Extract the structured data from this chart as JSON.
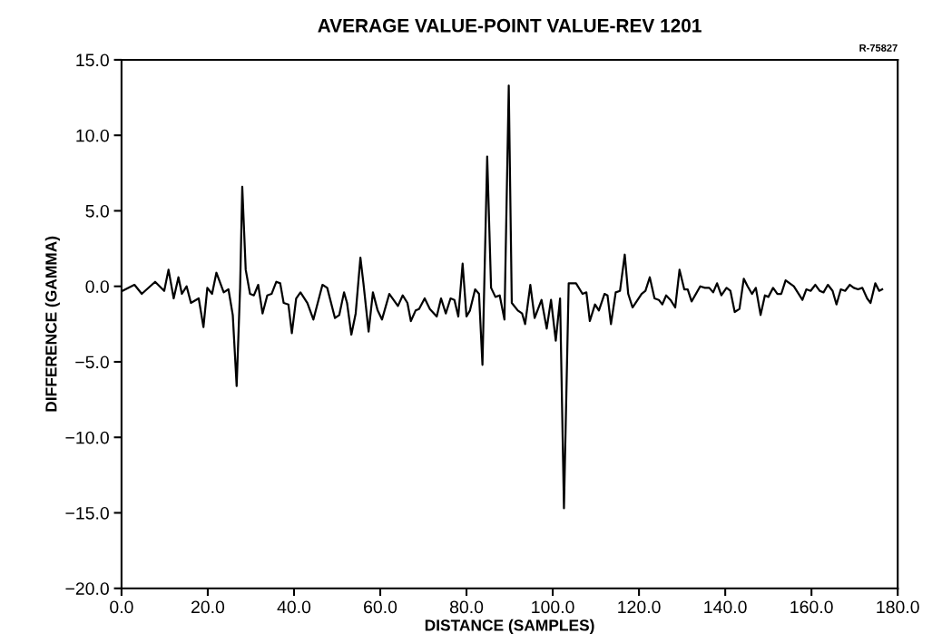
{
  "chart_data": {
    "type": "line",
    "title": "AVERAGE VALUE-POINT VALUE-REV 1201",
    "xlabel": "DISTANCE (SAMPLES)",
    "ylabel": "DIFFERENCE (GAMMA)",
    "annotations": [
      "R-75827"
    ],
    "x": [
      0.2,
      3.0,
      4.7,
      7.8,
      9.9,
      10.9,
      12.1,
      13.2,
      14.0,
      15.1,
      16.1,
      17.9,
      19.0,
      19.9,
      21.0,
      22.0,
      23.7,
      24.8,
      25.8,
      26.7,
      27.5,
      28.0,
      28.8,
      29.8,
      30.7,
      31.7,
      32.7,
      33.8,
      34.8,
      35.9,
      36.8,
      37.6,
      38.7,
      39.5,
      40.5,
      41.5,
      43.1,
      44.5,
      46.6,
      47.7,
      49.5,
      50.5,
      51.6,
      52.3,
      53.3,
      54.3,
      55.4,
      56.1,
      57.3,
      58.3,
      59.4,
      60.4,
      62.1,
      64.1,
      65.2,
      66.3,
      67.1,
      68.2,
      69.0,
      70.3,
      71.5,
      73.1,
      74.1,
      75.2,
      76.3,
      77.2,
      78.1,
      79.1,
      80.0,
      80.8,
      82.0,
      82.9,
      83.7,
      84.8,
      85.7,
      86.7,
      87.7,
      88.8,
      89.8,
      90.5,
      91.9,
      92.9,
      93.6,
      94.8,
      95.8,
      97.4,
      98.6,
      99.6,
      100.7,
      101.7,
      102.6,
      103.7,
      105.4,
      106.9,
      107.8,
      108.6,
      109.8,
      110.7,
      112.0,
      112.7,
      113.5,
      114.6,
      115.6,
      116.7,
      117.5,
      118.5,
      120.6,
      121.5,
      122.5,
      123.6,
      124.6,
      125.4,
      126.3,
      127.3,
      128.4,
      129.4,
      130.5,
      131.3,
      132.2,
      134.2,
      135.3,
      136.3,
      137.2,
      138.1,
      139.1,
      140.3,
      141.2,
      142.2,
      143.3,
      144.3,
      145.2,
      146.2,
      147.1,
      148.2,
      149.2,
      150.0,
      151.1,
      152.1,
      153.0,
      154.0,
      155.9,
      157.9,
      158.8,
      159.8,
      160.9,
      161.9,
      162.8,
      163.8,
      164.9,
      165.8,
      166.8,
      167.8,
      168.9,
      169.8,
      170.8,
      171.8,
      172.9,
      173.7,
      174.8,
      175.7,
      176.4
    ],
    "series": [
      {
        "color": "#000000",
        "values": [
          -0.3,
          0.1,
          -0.5,
          0.3,
          -0.3,
          1.1,
          -0.8,
          0.6,
          -0.5,
          0.0,
          -1.1,
          -0.8,
          -2.7,
          -0.1,
          -0.5,
          0.9,
          -0.4,
          -0.2,
          -1.9,
          -6.6,
          -0.1,
          6.6,
          1.1,
          -0.5,
          -0.6,
          0.1,
          -1.8,
          -0.6,
          -0.5,
          0.3,
          0.2,
          -1.1,
          -1.2,
          -3.1,
          -0.8,
          -0.4,
          -1.1,
          -2.2,
          0.1,
          -0.1,
          -2.1,
          -1.9,
          -0.4,
          -1.1,
          -3.2,
          -1.8,
          1.9,
          0.2,
          -3.0,
          -0.4,
          -1.6,
          -2.2,
          -0.5,
          -1.3,
          -0.6,
          -1.1,
          -2.3,
          -1.6,
          -1.5,
          -0.8,
          -1.5,
          -2.0,
          -0.8,
          -1.8,
          -0.8,
          -0.9,
          -2.0,
          1.5,
          -2.0,
          -1.6,
          -0.2,
          -0.5,
          -5.2,
          8.6,
          -0.1,
          -0.7,
          -0.6,
          -2.2,
          13.3,
          -1.1,
          -1.6,
          -1.8,
          -2.5,
          0.1,
          -2.1,
          -0.9,
          -2.8,
          -0.9,
          -3.6,
          -0.8,
          -14.7,
          0.2,
          0.2,
          -0.5,
          -0.4,
          -2.3,
          -1.2,
          -1.6,
          -0.5,
          -0.6,
          -2.5,
          -0.4,
          -0.3,
          2.1,
          -0.5,
          -1.4,
          -0.5,
          -0.3,
          0.6,
          -0.8,
          -0.9,
          -1.2,
          -0.6,
          -0.9,
          -1.4,
          1.1,
          -0.2,
          -0.2,
          -1.0,
          0.0,
          -0.1,
          -0.1,
          -0.4,
          0.2,
          -0.6,
          -0.1,
          -0.3,
          -1.7,
          -1.5,
          0.5,
          0.0,
          -0.5,
          -0.1,
          -1.9,
          -0.6,
          -0.7,
          -0.1,
          -0.5,
          -0.5,
          0.4,
          0.0,
          -0.9,
          -0.2,
          -0.3,
          0.1,
          -0.3,
          -0.4,
          0.1,
          -0.3,
          -1.2,
          -0.2,
          -0.3,
          0.1,
          -0.1,
          -0.2,
          -0.1,
          -0.8,
          -1.1,
          0.2,
          -0.3,
          -0.2
        ]
      }
    ],
    "xlim": [
      0,
      180
    ],
    "ylim": [
      -20,
      15
    ],
    "xticks": [
      {
        "value": 0,
        "label": "0.0"
      },
      {
        "value": 20,
        "label": "20.0"
      },
      {
        "value": 40,
        "label": "40.0"
      },
      {
        "value": 60,
        "label": "60.0"
      },
      {
        "value": 80,
        "label": "80.0"
      },
      {
        "value": 100,
        "label": "100.0"
      },
      {
        "value": 120,
        "label": "120.0"
      },
      {
        "value": 140,
        "label": "140.0"
      },
      {
        "value": 160,
        "label": "160.0"
      },
      {
        "value": 180,
        "label": "180.0"
      }
    ],
    "yticks": [
      {
        "value": -20,
        "label": "−20.0"
      },
      {
        "value": -15,
        "label": "−15.0"
      },
      {
        "value": -10,
        "label": "−10.0"
      },
      {
        "value": -5,
        "label": "−5.0"
      },
      {
        "value": 0,
        "label": "0.0"
      },
      {
        "value": 5,
        "label": "5.0"
      },
      {
        "value": 10,
        "label": "10.0"
      },
      {
        "value": 15,
        "label": "15.0"
      }
    ],
    "grid": false,
    "legend": false,
    "marker": "none",
    "line_style": "solid"
  }
}
